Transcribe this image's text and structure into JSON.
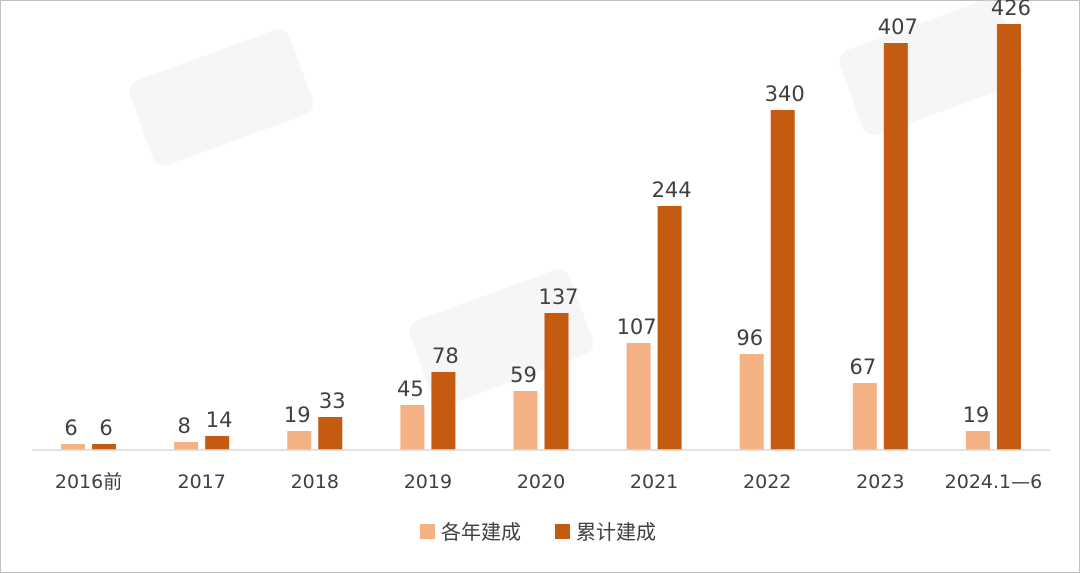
{
  "chart_data": {
    "type": "bar",
    "categories": [
      "2016前",
      "2017",
      "2018",
      "2019",
      "2020",
      "2021",
      "2022",
      "2023",
      "2024.1—6"
    ],
    "series": [
      {
        "name": "各年建成",
        "values": [
          6,
          8,
          19,
          45,
          59,
          107,
          96,
          67,
          19
        ],
        "color": "#f4b183"
      },
      {
        "name": "累计建成",
        "values": [
          6,
          14,
          33,
          78,
          137,
          244,
          340,
          407,
          426
        ],
        "color": "#c55a11"
      }
    ],
    "ylim": [
      0,
      440
    ],
    "grid": false,
    "legend_position": "bottom"
  }
}
